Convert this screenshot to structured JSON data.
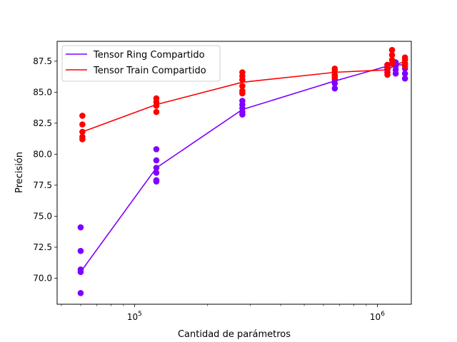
{
  "chart_data": {
    "type": "scatter",
    "title": "",
    "xlabel": "Cantidad de parámetros",
    "ylabel": "Precisión",
    "xscale": "log",
    "xlim": [
      48000,
      1380000
    ],
    "ylim": [
      67.9,
      89.1
    ],
    "x_ticks": [
      {
        "value": 100000,
        "base": "10",
        "exp": "5"
      },
      {
        "value": 1000000,
        "base": "10",
        "exp": "6"
      }
    ],
    "y_ticks": [
      {
        "value": 70.0,
        "label": "70.0"
      },
      {
        "value": 72.5,
        "label": "72.5"
      },
      {
        "value": 75.0,
        "label": "75.0"
      },
      {
        "value": 77.5,
        "label": "77.5"
      },
      {
        "value": 80.0,
        "label": "80.0"
      },
      {
        "value": 82.5,
        "label": "82.5"
      },
      {
        "value": 85.0,
        "label": "85.0"
      },
      {
        "value": 87.5,
        "label": "87.5"
      }
    ],
    "legend_position": "top-left",
    "grid": false,
    "series": [
      {
        "name": "Tensor Ring Compartido",
        "color": "#7f00ff",
        "line": [
          {
            "x": 61000,
            "y": 70.7
          },
          {
            "x": 123000,
            "y": 78.9
          },
          {
            "x": 278000,
            "y": 83.6
          },
          {
            "x": 668000,
            "y": 85.9
          },
          {
            "x": 1100000,
            "y": 87.1
          },
          {
            "x": 1190000,
            "y": 87.2
          },
          {
            "x": 1300000,
            "y": 87.2
          }
        ],
        "points": [
          {
            "x": 60000,
            "y": 74.1
          },
          {
            "x": 60000,
            "y": 72.2
          },
          {
            "x": 60000,
            "y": 70.7
          },
          {
            "x": 60000,
            "y": 70.5
          },
          {
            "x": 60000,
            "y": 68.8
          },
          {
            "x": 123000,
            "y": 80.4
          },
          {
            "x": 123000,
            "y": 79.5
          },
          {
            "x": 123000,
            "y": 78.9
          },
          {
            "x": 123000,
            "y": 78.5
          },
          {
            "x": 123000,
            "y": 77.8
          },
          {
            "x": 123000,
            "y": 77.9
          },
          {
            "x": 278000,
            "y": 84.3
          },
          {
            "x": 278000,
            "y": 84.0
          },
          {
            "x": 278000,
            "y": 83.7
          },
          {
            "x": 278000,
            "y": 83.4
          },
          {
            "x": 278000,
            "y": 83.2
          },
          {
            "x": 668000,
            "y": 86.3
          },
          {
            "x": 668000,
            "y": 86.0
          },
          {
            "x": 668000,
            "y": 85.7
          },
          {
            "x": 668000,
            "y": 85.3
          },
          {
            "x": 1100000,
            "y": 87.2
          },
          {
            "x": 1100000,
            "y": 87.0
          },
          {
            "x": 1100000,
            "y": 86.8
          },
          {
            "x": 1100000,
            "y": 86.6
          },
          {
            "x": 1190000,
            "y": 87.4
          },
          {
            "x": 1190000,
            "y": 87.1
          },
          {
            "x": 1190000,
            "y": 86.8
          },
          {
            "x": 1190000,
            "y": 86.5
          },
          {
            "x": 1300000,
            "y": 87.3
          },
          {
            "x": 1300000,
            "y": 86.9
          },
          {
            "x": 1300000,
            "y": 86.5
          },
          {
            "x": 1300000,
            "y": 86.1
          }
        ]
      },
      {
        "name": "Tensor Train Compartido",
        "color": "#ff0000",
        "line": [
          {
            "x": 61000,
            "y": 81.8
          },
          {
            "x": 123000,
            "y": 84.0
          },
          {
            "x": 278000,
            "y": 85.8
          },
          {
            "x": 668000,
            "y": 86.6
          },
          {
            "x": 1100000,
            "y": 86.8
          },
          {
            "x": 1190000,
            "y": 87.2
          },
          {
            "x": 1300000,
            "y": 87.5
          }
        ],
        "points": [
          {
            "x": 61000,
            "y": 83.1
          },
          {
            "x": 61000,
            "y": 82.4
          },
          {
            "x": 61000,
            "y": 81.8
          },
          {
            "x": 61000,
            "y": 81.4
          },
          {
            "x": 61000,
            "y": 81.2
          },
          {
            "x": 123000,
            "y": 84.5
          },
          {
            "x": 123000,
            "y": 84.2
          },
          {
            "x": 123000,
            "y": 83.9
          },
          {
            "x": 123000,
            "y": 83.4
          },
          {
            "x": 278000,
            "y": 86.6
          },
          {
            "x": 278000,
            "y": 86.3
          },
          {
            "x": 278000,
            "y": 86.0
          },
          {
            "x": 278000,
            "y": 85.5
          },
          {
            "x": 278000,
            "y": 85.1
          },
          {
            "x": 278000,
            "y": 84.9
          },
          {
            "x": 668000,
            "y": 86.9
          },
          {
            "x": 668000,
            "y": 86.7
          },
          {
            "x": 668000,
            "y": 86.4
          },
          {
            "x": 668000,
            "y": 86.2
          },
          {
            "x": 1100000,
            "y": 87.2
          },
          {
            "x": 1100000,
            "y": 86.9
          },
          {
            "x": 1100000,
            "y": 86.6
          },
          {
            "x": 1100000,
            "y": 86.4
          },
          {
            "x": 1150000,
            "y": 88.4
          },
          {
            "x": 1150000,
            "y": 88.0
          },
          {
            "x": 1150000,
            "y": 87.6
          },
          {
            "x": 1150000,
            "y": 87.3
          },
          {
            "x": 1300000,
            "y": 87.8
          },
          {
            "x": 1300000,
            "y": 87.6
          },
          {
            "x": 1300000,
            "y": 87.3
          },
          {
            "x": 1300000,
            "y": 87.1
          }
        ]
      }
    ]
  }
}
